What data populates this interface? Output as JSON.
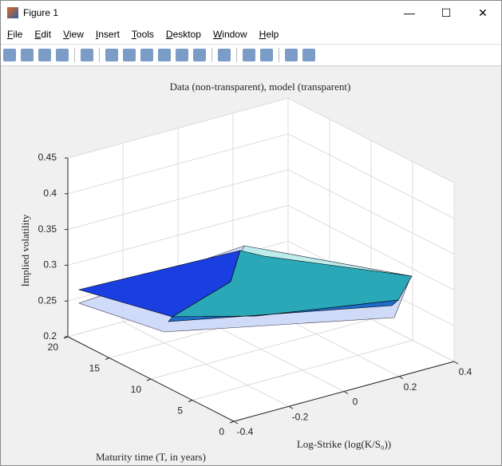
{
  "window": {
    "title": "Figure 1"
  },
  "menu": [
    "File",
    "Edit",
    "View",
    "Insert",
    "Tools",
    "Desktop",
    "Window",
    "Help"
  ],
  "chart_data": {
    "type": "surface3d",
    "title": "Data (non-transparent), model (transparent)",
    "x_label": "Log-Strike (log(K/S₀))",
    "y_label": "Maturity time (T, in years)",
    "z_label": "Implied volatility",
    "xlim": [
      -0.4,
      0.4
    ],
    "xticks": [
      -0.4,
      -0.2,
      0,
      0.2,
      0.4
    ],
    "ylim": [
      0,
      20
    ],
    "yticks": [
      0,
      5,
      10,
      15,
      20
    ],
    "zlim": [
      0.2,
      0.45
    ],
    "zticks": [
      0.2,
      0.25,
      0.3,
      0.35,
      0.4,
      0.45
    ],
    "grid": true
  }
}
